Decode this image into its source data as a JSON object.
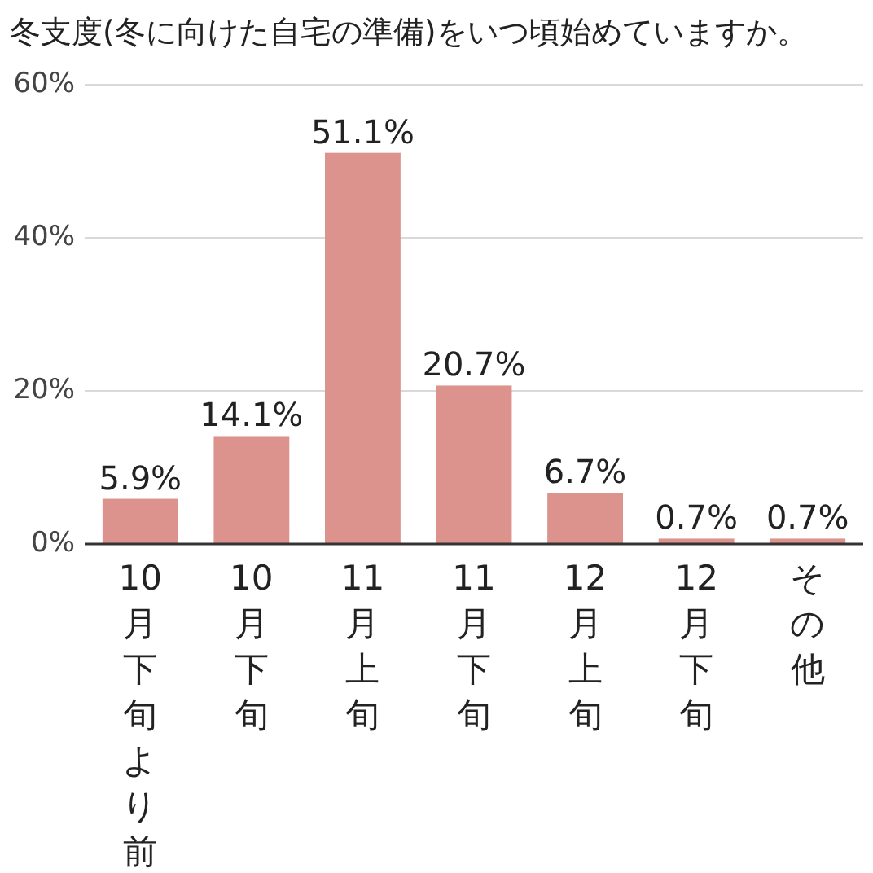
{
  "chart_data": {
    "type": "bar",
    "title": "冬支度(冬に向けた自宅の準備)をいつ頃始めていますか。",
    "categories": [
      "10月下旬より前",
      "10月下旬",
      "11月上旬",
      "11月下旬",
      "12月上旬",
      "12月下旬",
      "その他"
    ],
    "values": [
      5.9,
      14.1,
      51.1,
      20.7,
      6.7,
      0.7,
      0.7
    ],
    "value_labels": [
      "5.9%",
      "14.1%",
      "51.1%",
      "20.7%",
      "6.7%",
      "0.7%",
      "0.7%"
    ],
    "color": "#dd938d",
    "ylim": [
      0,
      60
    ],
    "yticks": [
      {
        "value": 0,
        "label": "0%"
      },
      {
        "value": 20,
        "label": "20%"
      },
      {
        "value": 40,
        "label": "40%"
      },
      {
        "value": 60,
        "label": "60%"
      }
    ],
    "grid": "y"
  }
}
